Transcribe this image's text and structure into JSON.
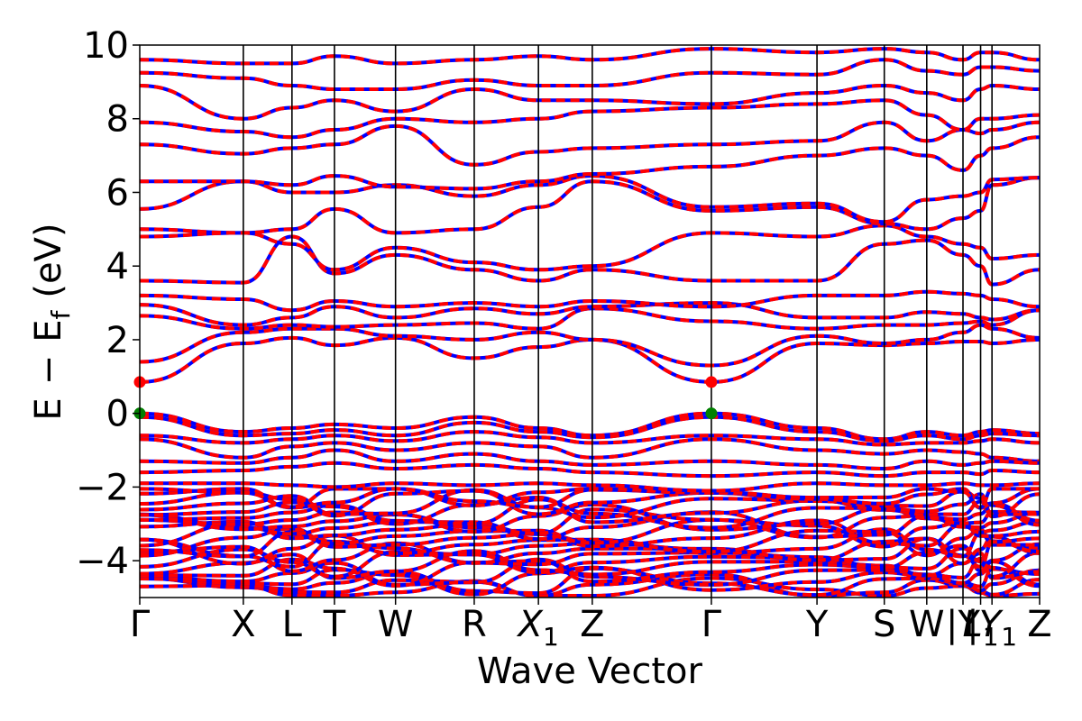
{
  "chart_data": {
    "type": "line",
    "title": "",
    "xlabel": "Wave Vector",
    "ylabel_parts": [
      "E",
      "−",
      "E",
      "f",
      "(eV)"
    ],
    "ylim": [
      -5,
      10
    ],
    "yticks": [
      {
        "value": 10,
        "label": "10"
      },
      {
        "value": 8,
        "label": "8"
      },
      {
        "value": 6,
        "label": "6"
      },
      {
        "value": 4,
        "label": "4"
      },
      {
        "value": 2,
        "label": "2"
      },
      {
        "value": 0,
        "label": "0"
      },
      {
        "value": -2,
        "label": "−2"
      },
      {
        "value": -4,
        "label": "−4"
      }
    ],
    "kpoints": [
      {
        "label": "Γ",
        "sub": "",
        "italic": false
      },
      {
        "label": "X",
        "sub": "",
        "italic": false
      },
      {
        "label": "L",
        "sub": "",
        "italic": false
      },
      {
        "label": "T",
        "sub": "",
        "italic": false
      },
      {
        "label": "W",
        "sub": "",
        "italic": false
      },
      {
        "label": "R",
        "sub": "",
        "italic": false
      },
      {
        "label": "X",
        "sub": "1",
        "italic": true
      },
      {
        "label": "Z",
        "sub": "",
        "italic": false
      },
      {
        "label": "Γ",
        "sub": "",
        "italic": false
      },
      {
        "label": "Y",
        "sub": "",
        "italic": false
      },
      {
        "label": "S",
        "sub": "",
        "italic": false
      },
      {
        "label": "W",
        "sub": "",
        "italic": false
      },
      {
        "label": "|Y",
        "sub": "",
        "italic": false
      },
      {
        "label": "L",
        "sub": "1",
        "italic": true
      },
      {
        "label": "|Y",
        "sub": "1",
        "italic": true
      },
      {
        "label": "Z",
        "sub": "",
        "italic": false
      }
    ],
    "kpath_segment_lengths": [
      1.0,
      0.47,
      0.41,
      0.59,
      0.76,
      0.62,
      0.52,
      1.15,
      1.02,
      0.65,
      0.41,
      0.35,
      0.17,
      0.11,
      0.46
    ],
    "series_style": [
      {
        "color": "#0000ff",
        "dash": "solid"
      },
      {
        "color": "#ff0000",
        "dash": "dashed"
      }
    ],
    "conduction_bands": [
      [
        0.85,
        1.9,
        2.05,
        1.85,
        2.05,
        1.5,
        1.8,
        2.0,
        0.85,
        1.9,
        1.85,
        1.9,
        1.95,
        1.95,
        1.9,
        2.0
      ],
      [
        1.4,
        2.2,
        2.3,
        2.3,
        2.1,
        2.0,
        2.2,
        2.0,
        1.3,
        2.1,
        1.9,
        2.0,
        2.2,
        2.4,
        2.3,
        2.05
      ],
      [
        2.65,
        2.3,
        2.4,
        2.35,
        2.4,
        2.45,
        2.3,
        2.85,
        2.5,
        2.3,
        2.4,
        2.4,
        2.45,
        2.5,
        2.4,
        2.8
      ],
      [
        2.95,
        2.4,
        2.6,
        2.9,
        2.6,
        2.85,
        2.7,
        2.9,
        3.0,
        2.6,
        2.6,
        2.75,
        2.7,
        2.6,
        2.55,
        2.8
      ],
      [
        3.2,
        3.1,
        2.8,
        3.05,
        2.9,
        3.0,
        2.9,
        3.05,
        2.9,
        3.2,
        3.2,
        3.3,
        3.25,
        3.2,
        3.1,
        2.9
      ],
      [
        3.6,
        3.55,
        4.8,
        3.8,
        4.3,
        3.9,
        3.6,
        3.9,
        3.6,
        3.6,
        4.6,
        4.7,
        4.3,
        4.0,
        3.5,
        3.9
      ],
      [
        4.8,
        4.9,
        4.6,
        3.9,
        4.5,
        4.1,
        3.9,
        4.0,
        4.9,
        4.8,
        5.1,
        4.8,
        4.6,
        4.5,
        4.2,
        4.3
      ],
      [
        5.0,
        4.9,
        5.0,
        5.55,
        4.9,
        5.0,
        5.6,
        6.3,
        5.5,
        5.6,
        5.15,
        5.0,
        5.3,
        5.5,
        6.2,
        6.4
      ],
      [
        5.55,
        6.3,
        6.0,
        6.0,
        6.2,
        5.9,
        6.2,
        6.45,
        5.6,
        5.7,
        5.2,
        5.8,
        5.9,
        6.0,
        6.35,
        6.4
      ],
      [
        6.3,
        6.3,
        6.2,
        6.45,
        6.15,
        6.1,
        6.3,
        6.5,
        6.7,
        7.0,
        7.2,
        7.0,
        6.6,
        7.0,
        7.2,
        7.5
      ],
      [
        7.3,
        7.05,
        7.2,
        7.3,
        7.8,
        6.75,
        7.1,
        7.2,
        7.3,
        7.4,
        7.9,
        7.4,
        7.7,
        7.6,
        7.7,
        7.9
      ],
      [
        7.9,
        7.65,
        7.5,
        7.7,
        8.0,
        7.9,
        8.0,
        8.2,
        8.3,
        8.4,
        8.5,
        8.1,
        7.7,
        8.0,
        8.0,
        8.1
      ],
      [
        8.9,
        8.0,
        8.3,
        8.5,
        8.2,
        8.8,
        8.5,
        8.5,
        8.4,
        8.7,
        8.9,
        8.7,
        8.5,
        8.8,
        8.9,
        8.8
      ],
      [
        9.25,
        9.1,
        8.9,
        8.8,
        8.8,
        9.05,
        8.9,
        8.9,
        9.25,
        9.2,
        9.6,
        9.3,
        9.2,
        9.4,
        9.4,
        9.3
      ],
      [
        9.6,
        9.5,
        9.5,
        9.7,
        9.5,
        9.6,
        9.7,
        9.6,
        9.9,
        9.8,
        9.9,
        9.8,
        9.6,
        9.8,
        9.8,
        9.6
      ]
    ],
    "valence_bands": [
      [
        0.0,
        -0.5,
        -0.4,
        -0.3,
        -0.4,
        -0.1,
        -0.4,
        -0.6,
        0.0,
        -0.4,
        -0.7,
        -0.5,
        -0.6,
        -0.5,
        -0.45,
        -0.55
      ],
      [
        -0.1,
        -0.6,
        -0.55,
        -0.45,
        -0.6,
        -0.25,
        -0.5,
        -0.65,
        -0.1,
        -0.5,
        -0.75,
        -0.6,
        -0.7,
        -0.6,
        -0.55,
        -0.6
      ],
      [
        -0.6,
        -0.8,
        -0.7,
        -0.6,
        -0.75,
        -0.5,
        -0.65,
        -0.8,
        -0.6,
        -0.7,
        -0.85,
        -0.8,
        -0.8,
        -0.75,
        -0.7,
        -0.8
      ],
      [
        -0.7,
        -1.2,
        -0.9,
        -0.8,
        -1.0,
        -0.8,
        -0.9,
        -1.2,
        -0.7,
        -1.0,
        -1.1,
        -1.0,
        -1.05,
        -1.1,
        -1.2,
        -1.3
      ],
      [
        -1.3,
        -1.35,
        -1.2,
        -1.0,
        -1.3,
        -1.1,
        -1.3,
        -1.4,
        -1.3,
        -1.4,
        -1.5,
        -1.3,
        -1.4,
        -1.35,
        -1.3,
        -1.35
      ],
      [
        -1.6,
        -1.55,
        -1.45,
        -1.35,
        -1.5,
        -1.4,
        -1.5,
        -1.6,
        -1.7,
        -1.6,
        -1.7,
        -1.6,
        -1.6,
        -1.65,
        -1.55,
        -1.6
      ],
      [
        -1.9,
        -1.9,
        -1.95,
        -2.0,
        -1.9,
        -1.95,
        -1.9,
        -1.95,
        -2.1,
        -1.9,
        -1.95,
        -1.95,
        -1.9,
        -1.95,
        -1.95,
        -1.9
      ]
    ],
    "markers": [
      {
        "x_kpoint": 0,
        "y": 0.85,
        "color": "#ff0000"
      },
      {
        "x_kpoint": 0,
        "y": 0.0,
        "color": "#008000"
      },
      {
        "x_kpoint": 8,
        "y": 0.85,
        "color": "#ff0000"
      },
      {
        "x_kpoint": 8,
        "y": 0.0,
        "color": "#008000"
      }
    ],
    "dense_region": {
      "ymin": -5.0,
      "ymax": -2.0,
      "band_count": 24
    }
  }
}
